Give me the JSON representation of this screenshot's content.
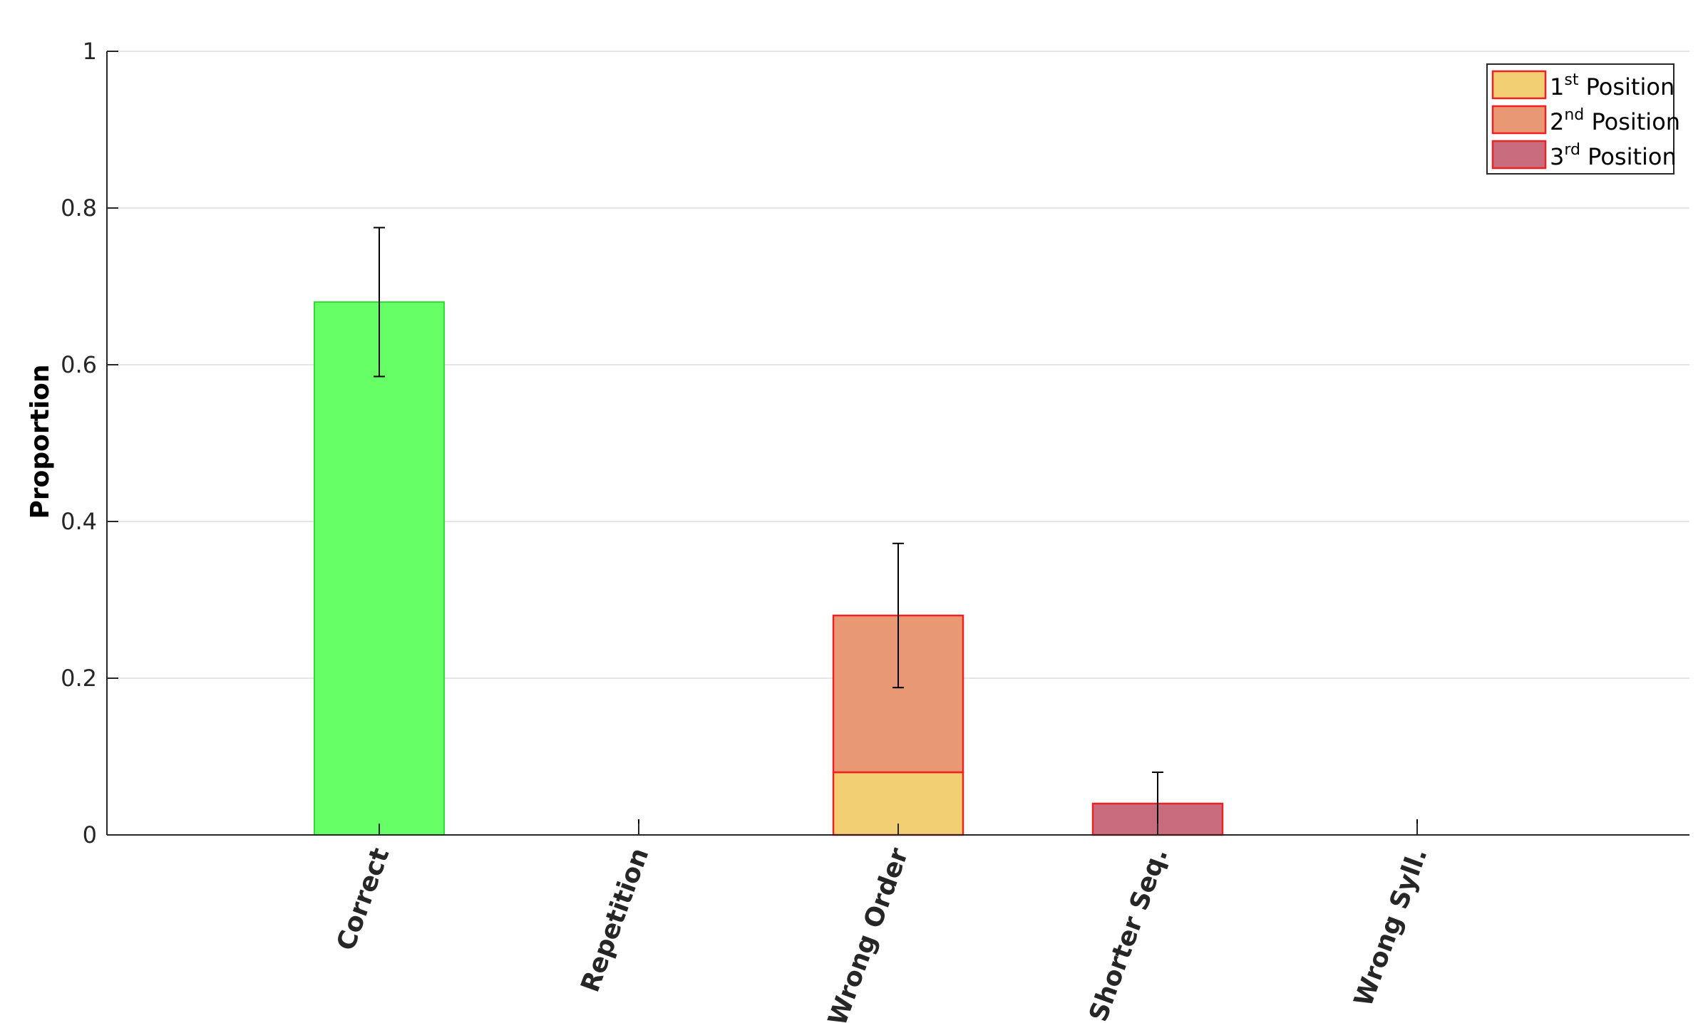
{
  "chart_data": {
    "type": "bar",
    "ylabel": "Proportion",
    "xlabel": "",
    "ylim": [
      0,
      1
    ],
    "yticks": [
      0,
      0.2,
      0.4,
      0.6,
      0.8,
      1
    ],
    "ytick_labels": [
      "0",
      "0.2",
      "0.4",
      "0.6",
      "0.8",
      "1"
    ],
    "grid": "horizontal",
    "legend_placement": "top-right",
    "categories": [
      "Correct",
      "Repetition",
      "Wrong Order",
      "Shorter Seq.",
      "Wrong Syll."
    ],
    "correct_bar": {
      "category": "Correct",
      "value": 0.68,
      "color": "#66ff66",
      "edge_color": "#33dd33"
    },
    "series": [
      {
        "base": "1",
        "sup": "st",
        "suffix": "Position",
        "color": "#f2cf72",
        "values": [
          0,
          0,
          0.08,
          0,
          0
        ]
      },
      {
        "base": "2",
        "sup": "nd",
        "suffix": "Position",
        "color": "#e89872",
        "values": [
          0,
          0,
          0.2,
          0,
          0
        ]
      },
      {
        "base": "3",
        "sup": "rd",
        "suffix": "Position",
        "color": "#c86c7e",
        "values": [
          0,
          0,
          0,
          0.04,
          0
        ]
      }
    ],
    "series_edge_color": "#ee2222",
    "totals": [
      0.68,
      0,
      0.28,
      0.04,
      0
    ],
    "error_bars": [
      {
        "low": 0.585,
        "high": 0.775
      },
      {
        "low": 0,
        "high": 0
      },
      {
        "low": 0.188,
        "high": 0.372
      },
      {
        "low": 0,
        "high": 0.08
      },
      {
        "low": 0,
        "high": 0
      }
    ]
  }
}
